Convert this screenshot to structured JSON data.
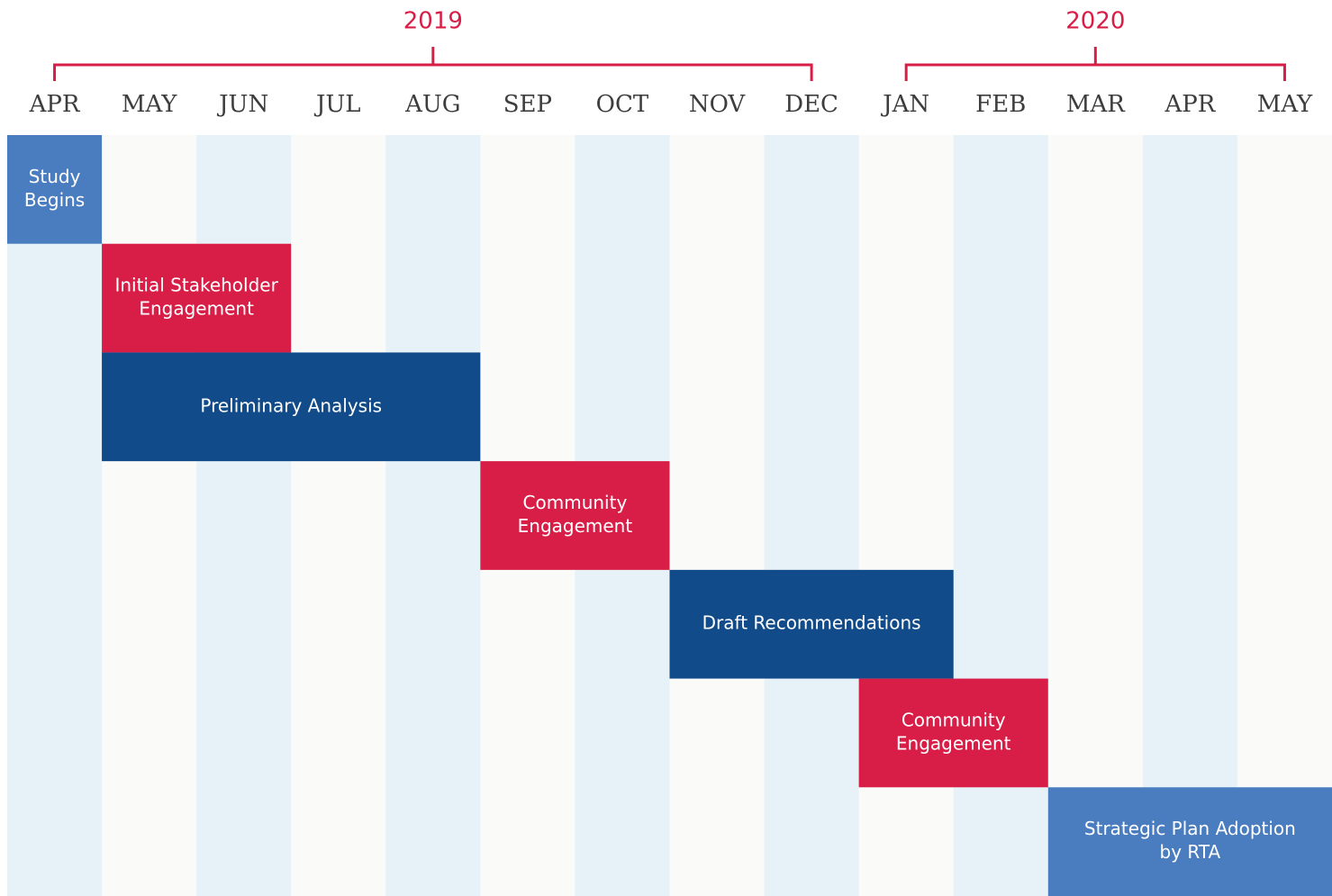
{
  "chart_data": {
    "type": "gantt",
    "categories": [
      "APR",
      "MAY",
      "JUN",
      "JUL",
      "AUG",
      "SEP",
      "OCT",
      "NOV",
      "DEC",
      "JAN",
      "FEB",
      "MAR",
      "APR",
      "MAY"
    ],
    "xlim": [
      0,
      14
    ],
    "years": [
      {
        "label": "2019",
        "start": 0.5,
        "end": 8.5
      },
      {
        "label": "2020",
        "start": 9.5,
        "end": 13.5
      }
    ],
    "stripe_colors": [
      "#e6f2f8",
      "#fafaf9"
    ],
    "year_color": "#d81e47",
    "tasks": [
      {
        "lines": [
          "Study",
          "Begins"
        ],
        "start": 0,
        "end": 1,
        "color": "#4a7cc0"
      },
      {
        "lines": [
          "Initial Stakeholder",
          "Engagement"
        ],
        "start": 1,
        "end": 3,
        "color": "#d81e47"
      },
      {
        "lines": [
          "Preliminary Analysis"
        ],
        "start": 1,
        "end": 5,
        "color": "#124b8a"
      },
      {
        "lines": [
          "Community",
          "Engagement"
        ],
        "start": 5,
        "end": 7,
        "color": "#d81e47"
      },
      {
        "lines": [
          "Draft Recommendations"
        ],
        "start": 7,
        "end": 10,
        "color": "#124b8a"
      },
      {
        "lines": [
          "Community",
          "Engagement"
        ],
        "start": 9,
        "end": 11,
        "color": "#d81e47"
      },
      {
        "lines": [
          "Strategic Plan Adoption",
          "by RTA"
        ],
        "start": 11,
        "end": 14,
        "color": "#4a7cc0"
      }
    ]
  }
}
